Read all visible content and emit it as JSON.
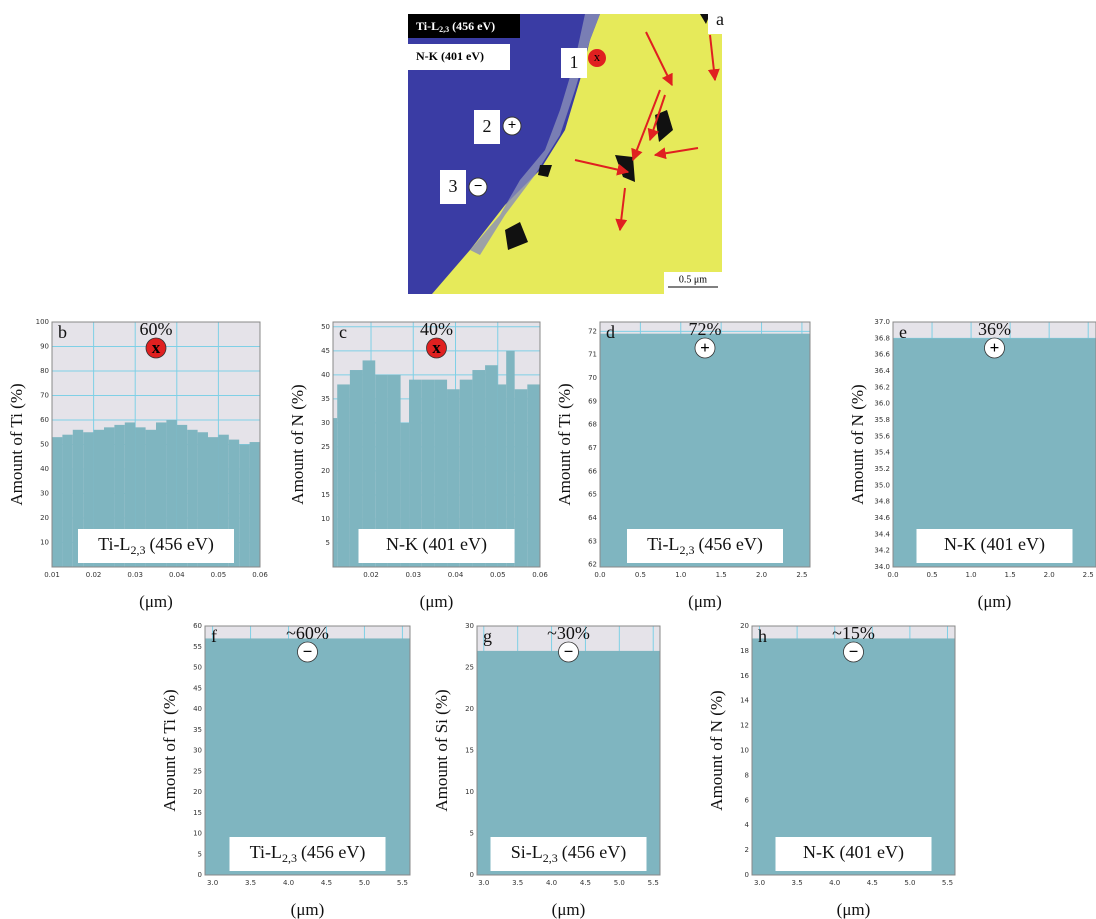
{
  "panel_a": {
    "letter": "a",
    "legend": [
      {
        "main": "Ti-L",
        "sub": "2,3",
        "rest": "(456 eV)"
      },
      {
        "main": "N-K (401 eV)"
      }
    ],
    "points": [
      "1",
      "2",
      "3"
    ],
    "marks": [
      "x",
      "+",
      "−"
    ],
    "scale_bar": "0.5 μm"
  },
  "chart_data": [
    {
      "type": "histogram",
      "panel": "b",
      "ylabel": "Amount of Ti (%)",
      "xlabel": "(μm)",
      "annotation": "60%",
      "marker": "x",
      "marker_color": "#e02020",
      "label": {
        "main": "Ti-L",
        "sub": "2,3",
        "rest": "(456 eV)"
      },
      "color": "#7fb5c0",
      "grid": true,
      "bins": [
        0.01,
        0.0125,
        0.015,
        0.0175,
        0.02,
        0.0225,
        0.025,
        0.0275,
        0.03,
        0.0325,
        0.035,
        0.0375,
        0.04,
        0.0425,
        0.045,
        0.0475,
        0.05,
        0.0525,
        0.055,
        0.0575,
        0.06
      ],
      "values": [
        53,
        54,
        56,
        55,
        56,
        57,
        58,
        59,
        57,
        56,
        59,
        60,
        58,
        56,
        55,
        53,
        54,
        52,
        50,
        51
      ],
      "xlim": [
        0.01,
        0.06
      ],
      "ylim": [
        0,
        100
      ],
      "xticks": [
        0.01,
        0.02,
        0.03,
        0.04,
        0.05,
        0.06
      ],
      "yticks": [
        10,
        20,
        30,
        40,
        50,
        60,
        70,
        80,
        90,
        100
      ]
    },
    {
      "type": "histogram",
      "panel": "c",
      "ylabel": "Amount of N (%)",
      "xlabel": "(μm)",
      "annotation": "40%",
      "marker": "x",
      "marker_color": "#e02020",
      "label": {
        "main": "N-K (401 eV)"
      },
      "color": "#7fb5c0",
      "grid": true,
      "bins": [
        0.011,
        0.012,
        0.015,
        0.018,
        0.021,
        0.024,
        0.027,
        0.029,
        0.032,
        0.035,
        0.038,
        0.041,
        0.044,
        0.047,
        0.05,
        0.052,
        0.054,
        0.057,
        0.06
      ],
      "values": [
        31,
        38,
        41,
        43,
        40,
        40,
        30,
        39,
        39,
        39,
        37,
        39,
        41,
        42,
        38,
        45,
        37,
        38
      ],
      "xlim": [
        0.011,
        0.06
      ],
      "ylim": [
        0,
        51
      ],
      "xticks": [
        0.02,
        0.03,
        0.04,
        0.05,
        0.06
      ],
      "yticks": [
        5,
        10,
        15,
        20,
        25,
        30,
        35,
        40,
        45,
        50
      ]
    },
    {
      "type": "histogram",
      "panel": "d",
      "ylabel": "Amount of Ti (%)",
      "xlabel": "(μm)",
      "annotation": "72%",
      "marker": "+",
      "marker_color": "#ffffff",
      "label": {
        "main": "Ti-L",
        "sub": "2,3",
        "rest": "(456 eV)"
      },
      "color": "#7fb5c0",
      "grid": true,
      "bins": [
        0,
        2.6
      ],
      "values": [
        71.9
      ],
      "xlim": [
        0,
        2.6
      ],
      "ylim": [
        61.9,
        72.4
      ],
      "xticks": [
        {
          "value": 0,
          "label": "0.0"
        },
        0.5,
        {
          "value": 1,
          "label": "1.0"
        },
        1.5,
        {
          "value": 2,
          "label": "2.0"
        },
        2.5
      ],
      "yticks": [
        62,
        63,
        64,
        65,
        66,
        67,
        68,
        69,
        70,
        71,
        72
      ]
    },
    {
      "type": "histogram",
      "panel": "e",
      "ylabel": "Amount of N (%)",
      "xlabel": "(μm)",
      "annotation": "36%",
      "marker": "+",
      "marker_color": "#ffffff",
      "label": {
        "main": "N-K (401 eV)"
      },
      "color": "#7fb5c0",
      "grid": true,
      "bins": [
        0,
        2.6
      ],
      "values": [
        36.8
      ],
      "xlim": [
        0,
        2.6
      ],
      "ylim": [
        34,
        37
      ],
      "xticks": [
        {
          "value": 0,
          "label": "0.0"
        },
        0.5,
        {
          "value": 1,
          "label": "1.0"
        },
        1.5,
        {
          "value": 2,
          "label": "2.0"
        },
        2.5
      ],
      "yticks": [
        {
          "value": 34,
          "label": "34.0"
        },
        34.2,
        34.4,
        34.6,
        34.8,
        {
          "value": 35,
          "label": "35.0"
        },
        35.2,
        35.4,
        35.6,
        35.8,
        {
          "value": 36,
          "label": "36.0"
        },
        36.2,
        36.4,
        36.6,
        36.8,
        {
          "value": 37,
          "label": "37.0"
        }
      ]
    },
    {
      "type": "histogram",
      "panel": "f",
      "ylabel": "Amount of Ti (%)",
      "xlabel": "(μm)",
      "annotation": "~60%",
      "marker": "−",
      "marker_color": "#ffffff",
      "label": {
        "main": "Ti-L",
        "sub": "2,3",
        "rest": "(456 eV)"
      },
      "color": "#7fb5c0",
      "grid": true,
      "bins": [
        2.9,
        5.6
      ],
      "values": [
        57
      ],
      "xlim": [
        2.9,
        5.6
      ],
      "ylim": [
        0,
        60
      ],
      "xticks": [
        {
          "value": 3,
          "label": "3.0"
        },
        3.5,
        {
          "value": 4,
          "label": "4.0"
        },
        4.5,
        {
          "value": 5,
          "label": "5.0"
        },
        5.5
      ],
      "yticks": [
        0,
        5,
        10,
        15,
        20,
        25,
        30,
        35,
        40,
        45,
        50,
        55,
        60
      ]
    },
    {
      "type": "histogram",
      "panel": "g",
      "ylabel": "Amount of Si (%)",
      "xlabel": "(μm)",
      "annotation": "~30%",
      "marker": "−",
      "marker_color": "#ffffff",
      "label": {
        "main": "Si-L",
        "sub": "2,3",
        "rest": "(456 eV)"
      },
      "color": "#7fb5c0",
      "grid": true,
      "bins": [
        2.9,
        5.6
      ],
      "values": [
        27
      ],
      "xlim": [
        2.9,
        5.6
      ],
      "ylim": [
        0,
        30
      ],
      "xticks": [
        {
          "value": 3,
          "label": "3.0"
        },
        3.5,
        {
          "value": 4,
          "label": "4.0"
        },
        4.5,
        {
          "value": 5,
          "label": "5.0"
        },
        5.5
      ],
      "yticks": [
        0,
        5,
        10,
        15,
        20,
        25,
        30
      ]
    },
    {
      "type": "histogram",
      "panel": "h",
      "ylabel": "Amount of N (%)",
      "xlabel": "(μm)",
      "annotation": "~15%",
      "marker": "−",
      "marker_color": "#ffffff",
      "label": {
        "main": "N-K (401 eV)"
      },
      "color": "#7fb5c0",
      "grid": true,
      "bins": [
        2.9,
        5.6
      ],
      "values": [
        19
      ],
      "xlim": [
        2.9,
        5.6
      ],
      "ylim": [
        0,
        20
      ],
      "xticks": [
        {
          "value": 3,
          "label": "3.0"
        },
        3.5,
        {
          "value": 4,
          "label": "4.0"
        },
        4.5,
        {
          "value": 5,
          "label": "5.0"
        },
        5.5
      ],
      "yticks": [
        0,
        2,
        4,
        6,
        8,
        10,
        12,
        14,
        16,
        18,
        20
      ]
    }
  ]
}
